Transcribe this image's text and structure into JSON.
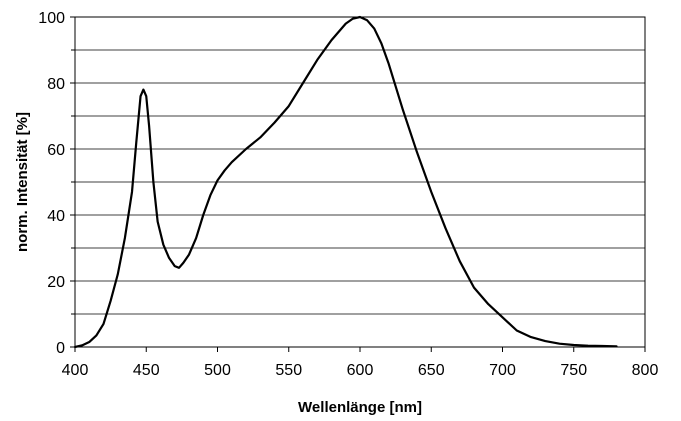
{
  "chart_data": {
    "type": "line",
    "xlabel": "Wellenlänge [nm]",
    "ylabel": "norm. Intensität [%]",
    "xlim": [
      400,
      800
    ],
    "ylim": [
      0,
      100
    ],
    "x_ticks": [
      "400",
      "450",
      "500",
      "550",
      "600",
      "650",
      "700",
      "750",
      "800"
    ],
    "y_ticks": [
      "0",
      "20",
      "40",
      "60",
      "80",
      "100"
    ],
    "grid": "horizontal every 10",
    "series": [
      {
        "x": [
          400,
          405,
          410,
          415,
          420,
          425,
          430,
          435,
          440,
          443,
          446,
          448,
          450,
          452,
          455,
          458,
          462,
          466,
          470,
          473,
          476,
          480,
          485,
          490,
          495,
          500,
          505,
          510,
          520,
          530,
          540,
          550,
          560,
          570,
          580,
          590,
          595,
          600,
          605,
          610,
          615,
          620,
          625,
          630,
          640,
          650,
          660,
          670,
          680,
          690,
          700,
          710,
          720,
          730,
          740,
          750,
          760,
          770,
          780
        ],
        "y": [
          0,
          0.5,
          1.5,
          3.5,
          7,
          14,
          22,
          33,
          47,
          62,
          76,
          78,
          76,
          67,
          50,
          38,
          31,
          27,
          24.5,
          24,
          25.5,
          28,
          33,
          40,
          46,
          50.5,
          53.5,
          56,
          60,
          63.5,
          68,
          73,
          80,
          87,
          93,
          98,
          99.5,
          100,
          99,
          96.5,
          92,
          86,
          79,
          72,
          59,
          47,
          36,
          26,
          18,
          13,
          9,
          5,
          3,
          1.8,
          1,
          0.6,
          0.4,
          0.3,
          0.2
        ]
      }
    ]
  }
}
